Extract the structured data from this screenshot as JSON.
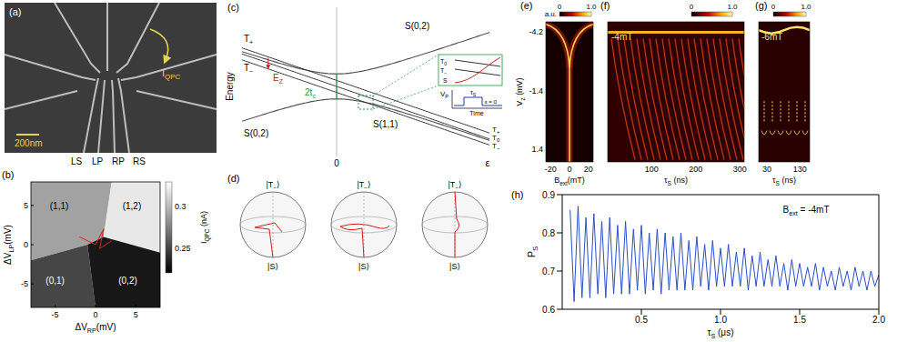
{
  "panels": {
    "a": {
      "label": "(a)",
      "scale_bar": "200nm",
      "current": {
        "main": "I",
        "sub": "QPC"
      },
      "gates": [
        "LS",
        "LP",
        "RP",
        "RS"
      ]
    },
    "b": {
      "label": "(b)",
      "xlabel": {
        "main": "ΔV",
        "sub": "RP",
        "rest": "(mV)"
      },
      "ylabel": {
        "main": "ΔV",
        "sub": "LP",
        "rest": "(mV)"
      },
      "xlim": [
        -8,
        8
      ],
      "xticks": [
        -5,
        0,
        5
      ],
      "ylim": [
        -8,
        8
      ],
      "yticks": [
        -5,
        0,
        5
      ],
      "colorbar": {
        "label": {
          "main": "I",
          "sub": "QPC",
          "rest": " (nA)"
        },
        "range": [
          0.22,
          0.33
        ],
        "ticks": [
          0.25,
          0.3
        ]
      },
      "regions": [
        {
          "label": "(1,1)",
          "value": 0.29
        },
        {
          "label": "(1,2)",
          "value": 0.32
        },
        {
          "label": "(0,1)",
          "value": 0.25
        },
        {
          "label": "(0,2)",
          "value": 0.23
        }
      ]
    },
    "c": {
      "label": "(c)",
      "ylabel": "Energy",
      "zero": "0",
      "xlabel": "ε",
      "T_plus": {
        "main": "T",
        "sub": "+"
      },
      "T_minus": {
        "main": "T",
        "sub": "−"
      },
      "T_zero": {
        "main": "T",
        "sub": "0"
      },
      "S02": "S(0,2)",
      "S11": "S(1,1)",
      "EZ": {
        "main": "E",
        "sub": "Z"
      },
      "tc": {
        "main": "2t",
        "sub": "c"
      },
      "zoom": {
        "T_minus": {
          "main": "T",
          "sub": "−"
        },
        "T_zero": {
          "main": "T",
          "sub": "0"
        },
        "S": "S"
      },
      "pulse": {
        "ylabel": {
          "main": "V",
          "sub": "P"
        },
        "width": {
          "main": "τ",
          "sub": "S"
        },
        "level": "ε = 0",
        "xlabel": "Time"
      }
    },
    "d": {
      "label": "(d)",
      "top": {
        "main": "|T",
        "sub": "−",
        "rest": "⟩"
      },
      "bottom": "|S⟩",
      "spheres": 3
    },
    "e": {
      "label": "(e)",
      "colorbar": {
        "label": "a.u.",
        "range": [
          0,
          1
        ],
        "ticks": [
          0,
          {
            "value": 1,
            "label": "1.0"
          }
        ]
      },
      "xlabel": {
        "main": "B",
        "sub": "ext",
        "rest": "(mT)"
      },
      "ylabel": {
        "main": "V",
        "sub": "z",
        "rest": " (mV)"
      },
      "xlim": [
        -25,
        25
      ],
      "xticks": [
        -20,
        0,
        20
      ],
      "ylim": [
        -4.7,
        2.0
      ],
      "yticks": [
        -4.2,
        -1.4,
        1.4
      ]
    },
    "f": {
      "label": "(f)",
      "annotation": "-4mT",
      "colorbar": {
        "range": [
          0,
          1
        ],
        "ticks": [
          0,
          {
            "value": 1,
            "label": "1.0"
          }
        ]
      },
      "xlabel": {
        "main": "τ",
        "sub": "S",
        "rest": " (ns)"
      },
      "xlim": [
        0,
        310
      ],
      "xticks": [
        100,
        200,
        300
      ]
    },
    "g": {
      "label": "(g)",
      "annotation": "-6mT",
      "colorbar": {
        "range": [
          0,
          1
        ],
        "ticks": [
          0,
          {
            "value": 1,
            "label": "1.0"
          }
        ]
      },
      "xlabel": {
        "main": "τ",
        "sub": "S",
        "rest": " (ns)"
      },
      "xlim": [
        5,
        160
      ],
      "xticks": [
        30,
        130
      ]
    }
  },
  "chart_data": {
    "label": "(h)",
    "type": "line",
    "color": "#2b4fc7",
    "x": [
      0.05,
      0.075,
      0.1,
      0.125,
      0.15,
      0.175,
      0.2,
      0.225,
      0.25,
      0.275,
      0.3,
      0.325,
      0.35,
      0.375,
      0.4,
      0.425,
      0.45,
      0.475,
      0.5,
      0.525,
      0.55,
      0.575,
      0.6,
      0.625,
      0.65,
      0.675,
      0.7,
      0.725,
      0.75,
      0.775,
      0.8,
      0.825,
      0.85,
      0.875,
      0.9,
      0.925,
      0.95,
      0.975,
      1.0,
      1.025,
      1.05,
      1.075,
      1.1,
      1.125,
      1.15,
      1.175,
      1.2,
      1.225,
      1.25,
      1.275,
      1.3,
      1.325,
      1.35,
      1.375,
      1.4,
      1.425,
      1.45,
      1.475,
      1.5,
      1.525,
      1.55,
      1.575,
      1.6,
      1.625,
      1.65,
      1.675,
      1.7,
      1.725,
      1.75,
      1.775,
      1.8,
      1.825,
      1.85,
      1.875,
      1.9,
      1.925,
      1.95,
      1.975,
      2.0
    ],
    "values": [
      0.86,
      0.62,
      0.87,
      0.63,
      0.84,
      0.63,
      0.85,
      0.64,
      0.83,
      0.63,
      0.84,
      0.64,
      0.82,
      0.64,
      0.83,
      0.64,
      0.81,
      0.65,
      0.82,
      0.64,
      0.8,
      0.65,
      0.81,
      0.64,
      0.8,
      0.65,
      0.79,
      0.65,
      0.8,
      0.65,
      0.78,
      0.65,
      0.79,
      0.66,
      0.77,
      0.65,
      0.78,
      0.66,
      0.76,
      0.66,
      0.77,
      0.66,
      0.75,
      0.66,
      0.76,
      0.65,
      0.74,
      0.66,
      0.75,
      0.66,
      0.73,
      0.66,
      0.74,
      0.66,
      0.72,
      0.65,
      0.73,
      0.66,
      0.72,
      0.66,
      0.71,
      0.66,
      0.72,
      0.65,
      0.71,
      0.66,
      0.7,
      0.65,
      0.71,
      0.66,
      0.7,
      0.65,
      0.71,
      0.66,
      0.7,
      0.65,
      0.7,
      0.66,
      0.69
    ],
    "xlim": [
      0,
      2
    ],
    "ylim": [
      0.6,
      0.9
    ],
    "xticks": [
      0.5,
      {
        "value": 1,
        "label": "1.0"
      },
      1.5,
      {
        "value": 2,
        "label": "2.0"
      }
    ],
    "yticks": [
      0.6,
      0.7,
      0.8,
      0.9
    ],
    "xlabel": {
      "main": "τ",
      "sub": "S",
      "rest": " (μs)"
    },
    "ylabel": {
      "main": "P",
      "sub": "S"
    },
    "annotation": {
      "main": "B",
      "sub": "ext",
      "rest": " = -4mT"
    }
  }
}
